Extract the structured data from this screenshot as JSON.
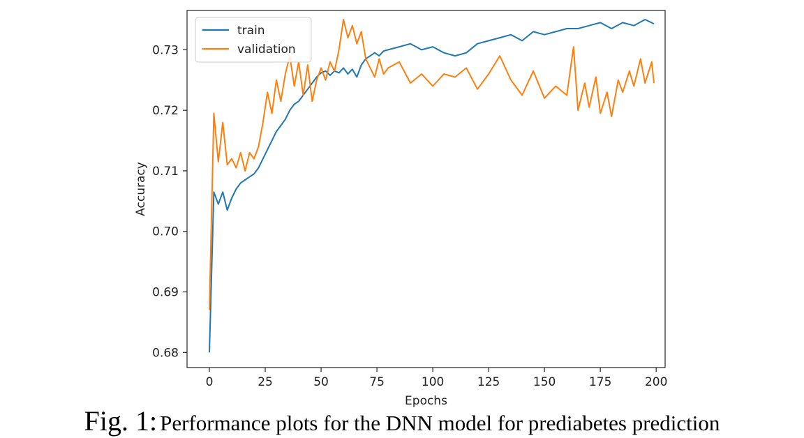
{
  "caption": {
    "number": "Fig. 1:",
    "text": "Performance plots for the DNN model for prediabetes prediction"
  },
  "colors": {
    "train": "#1f77b4",
    "validation": "#ff7f0e",
    "axis": "#222222"
  },
  "chart_data": {
    "type": "line",
    "xlabel": "Epochs",
    "ylabel": "Accuracy",
    "xlim": [
      -10,
      204
    ],
    "ylim": [
      0.6775,
      0.7365
    ],
    "xticks": [
      0,
      25,
      50,
      75,
      100,
      125,
      150,
      175,
      200
    ],
    "yticks": [
      0.68,
      0.69,
      0.7,
      0.71,
      0.72,
      0.73
    ],
    "ytick_labels": [
      "0.68",
      "0.69",
      "0.70",
      "0.71",
      "0.72",
      "0.73"
    ],
    "grid": false,
    "legend_position": "top-left",
    "series": [
      {
        "name": "train",
        "x": [
          0,
          2,
          4,
          6,
          8,
          10,
          12,
          14,
          16,
          18,
          20,
          22,
          24,
          26,
          28,
          30,
          32,
          34,
          36,
          38,
          40,
          42,
          44,
          46,
          48,
          50,
          52,
          54,
          56,
          58,
          60,
          62,
          64,
          66,
          68,
          70,
          72,
          74,
          76,
          78,
          80,
          85,
          90,
          95,
          100,
          105,
          110,
          115,
          120,
          125,
          130,
          135,
          140,
          145,
          150,
          155,
          160,
          165,
          170,
          175,
          180,
          185,
          190,
          195,
          199
        ],
        "y": [
          0.68,
          0.7065,
          0.7045,
          0.7065,
          0.7035,
          0.7055,
          0.707,
          0.708,
          0.7085,
          0.709,
          0.7095,
          0.7105,
          0.712,
          0.7135,
          0.715,
          0.7165,
          0.7175,
          0.7185,
          0.72,
          0.721,
          0.7215,
          0.7225,
          0.7235,
          0.7245,
          0.7255,
          0.7262,
          0.7265,
          0.7258,
          0.7265,
          0.7262,
          0.727,
          0.726,
          0.7268,
          0.7255,
          0.7275,
          0.7285,
          0.729,
          0.7295,
          0.729,
          0.7298,
          0.73,
          0.7305,
          0.731,
          0.73,
          0.7305,
          0.7295,
          0.729,
          0.7295,
          0.731,
          0.7315,
          0.732,
          0.7325,
          0.7315,
          0.733,
          0.7325,
          0.733,
          0.7335,
          0.7335,
          0.734,
          0.7345,
          0.7335,
          0.7345,
          0.734,
          0.735,
          0.7343
        ]
      },
      {
        "name": "validation",
        "x": [
          0,
          2,
          4,
          6,
          8,
          10,
          12,
          14,
          16,
          18,
          20,
          22,
          24,
          26,
          28,
          30,
          32,
          34,
          36,
          38,
          40,
          42,
          44,
          46,
          48,
          50,
          52,
          54,
          56,
          58,
          60,
          62,
          64,
          66,
          68,
          70,
          72,
          74,
          76,
          78,
          80,
          85,
          90,
          95,
          100,
          105,
          110,
          115,
          120,
          125,
          130,
          135,
          140,
          145,
          150,
          155,
          160,
          163,
          165,
          168,
          170,
          173,
          175,
          178,
          180,
          183,
          185,
          188,
          190,
          193,
          195,
          198,
          199
        ],
        "y": [
          0.687,
          0.7195,
          0.7115,
          0.718,
          0.711,
          0.712,
          0.7105,
          0.713,
          0.71,
          0.713,
          0.712,
          0.714,
          0.718,
          0.723,
          0.7195,
          0.725,
          0.7215,
          0.726,
          0.729,
          0.724,
          0.728,
          0.7225,
          0.7275,
          0.7215,
          0.725,
          0.727,
          0.725,
          0.728,
          0.7265,
          0.73,
          0.735,
          0.732,
          0.734,
          0.731,
          0.733,
          0.7285,
          0.727,
          0.7255,
          0.7285,
          0.726,
          0.727,
          0.728,
          0.7245,
          0.726,
          0.724,
          0.726,
          0.7255,
          0.727,
          0.7235,
          0.726,
          0.729,
          0.725,
          0.7225,
          0.7265,
          0.722,
          0.724,
          0.7225,
          0.7305,
          0.72,
          0.7245,
          0.7205,
          0.7255,
          0.7195,
          0.723,
          0.719,
          0.725,
          0.723,
          0.7265,
          0.724,
          0.7285,
          0.7245,
          0.728,
          0.7245
        ]
      }
    ]
  }
}
